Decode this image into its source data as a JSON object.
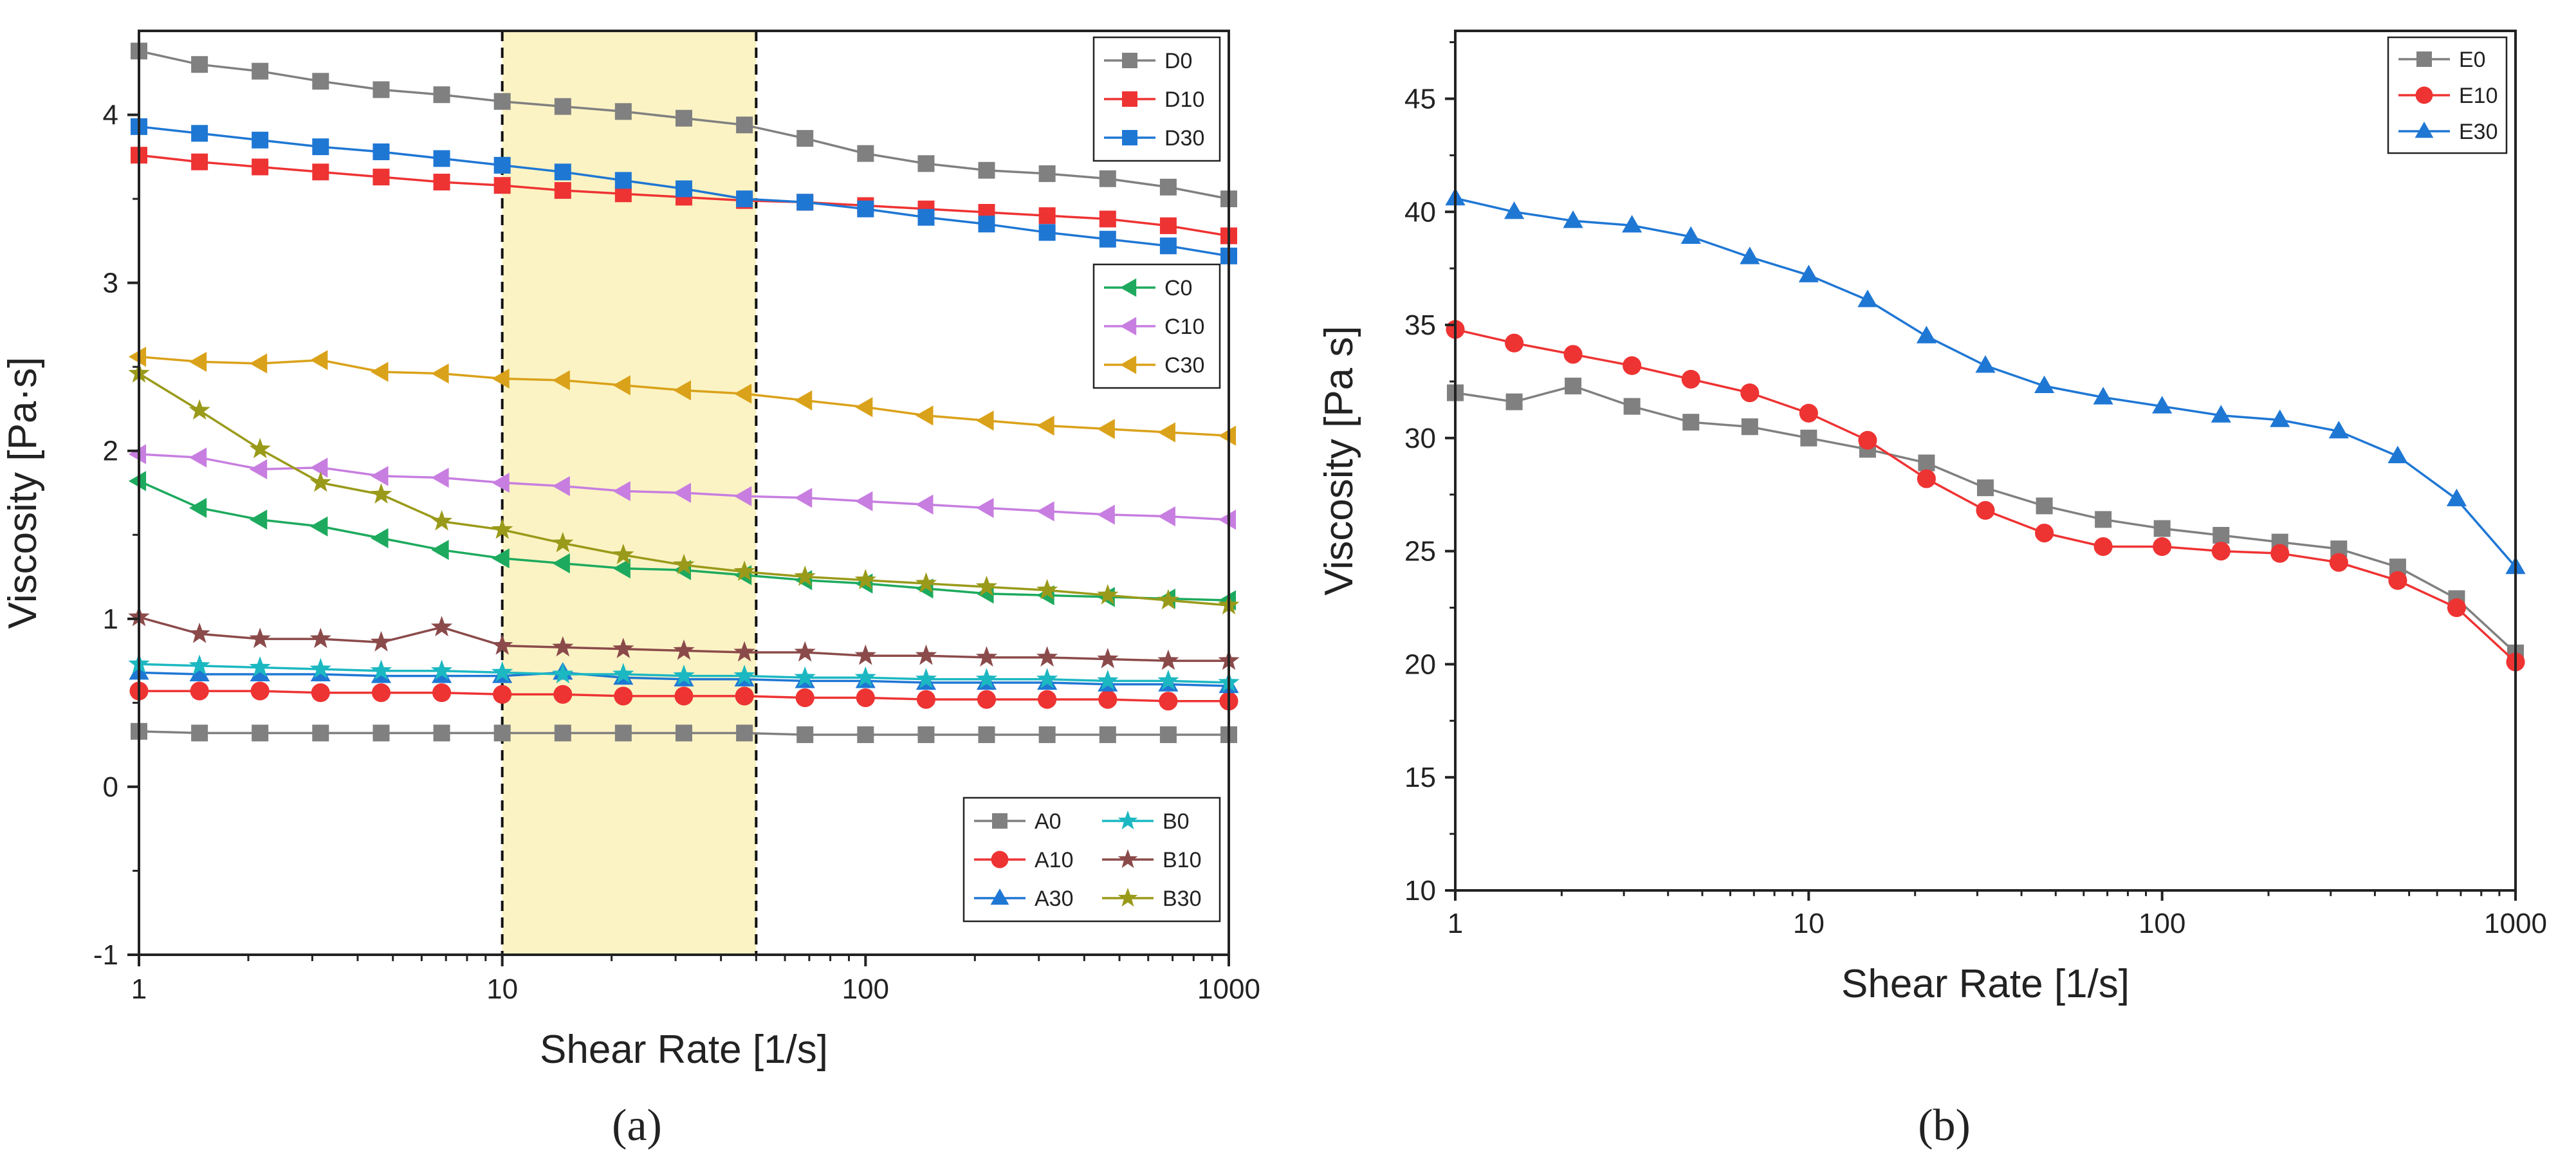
{
  "figure": {
    "panel_labels": [
      "(a)",
      "(b)"
    ]
  },
  "chart_data": [
    {
      "panel": "(a)",
      "type": "line",
      "title": "",
      "xlabel": "Shear Rate [1/s]",
      "ylabel": "Viscosity [Pa·s]",
      "xscale": "log",
      "xlim": [
        1,
        1000
      ],
      "ylim": [
        -1,
        4.5
      ],
      "xticks": [
        1,
        10,
        100,
        1000
      ],
      "xtick_labels": [
        "1",
        "10",
        "100",
        "1000"
      ],
      "yticks": [
        -1,
        0,
        1,
        2,
        3,
        4
      ],
      "ytick_labels": [
        "-1",
        "0",
        "1",
        "2",
        "3",
        "4"
      ],
      "grid": false,
      "highlight_band": {
        "x": [
          10,
          50
        ],
        "color": "#fbf3c4",
        "border": "dashed"
      },
      "x": [
        1,
        1.468,
        2.154,
        3.162,
        4.642,
        6.813,
        10,
        14.68,
        21.54,
        31.62,
        46.42,
        68.13,
        100,
        146.8,
        215.4,
        316.2,
        464.2,
        681.3,
        1000
      ],
      "legends": [
        {
          "position": "top-right",
          "series": [
            "D0",
            "D10",
            "D30"
          ]
        },
        {
          "position": "center-right",
          "series": [
            "C0",
            "C10",
            "C30"
          ]
        },
        {
          "position": "bottom-right",
          "columns": 2,
          "series": [
            "A0",
            "A10",
            "A30",
            "B0",
            "B10",
            "B30"
          ]
        }
      ],
      "series": [
        {
          "name": "D0",
          "color": "#808080",
          "marker": "square",
          "values": [
            4.38,
            4.3,
            4.26,
            4.2,
            4.15,
            4.12,
            4.08,
            4.05,
            4.02,
            3.98,
            3.94,
            3.86,
            3.77,
            3.71,
            3.67,
            3.65,
            3.62,
            3.57,
            3.5
          ]
        },
        {
          "name": "D10",
          "color": "#ee3333",
          "marker": "square",
          "values": [
            3.76,
            3.72,
            3.69,
            3.66,
            3.63,
            3.6,
            3.58,
            3.55,
            3.53,
            3.51,
            3.49,
            3.48,
            3.46,
            3.44,
            3.42,
            3.4,
            3.38,
            3.34,
            3.28
          ]
        },
        {
          "name": "D30",
          "color": "#1f77d4",
          "marker": "square",
          "values": [
            3.93,
            3.89,
            3.85,
            3.81,
            3.78,
            3.74,
            3.7,
            3.66,
            3.61,
            3.56,
            3.5,
            3.48,
            3.44,
            3.39,
            3.35,
            3.3,
            3.26,
            3.22,
            3.16
          ]
        },
        {
          "name": "C0",
          "color": "#1daa5e",
          "marker": "triangle-left",
          "values": [
            1.82,
            1.66,
            1.59,
            1.55,
            1.48,
            1.41,
            1.36,
            1.33,
            1.3,
            1.29,
            1.26,
            1.23,
            1.21,
            1.18,
            1.15,
            1.14,
            1.13,
            1.12,
            1.11
          ]
        },
        {
          "name": "C10",
          "color": "#c77ee0",
          "marker": "triangle-left",
          "values": [
            1.98,
            1.96,
            1.89,
            1.9,
            1.85,
            1.84,
            1.81,
            1.79,
            1.76,
            1.75,
            1.73,
            1.72,
            1.7,
            1.68,
            1.66,
            1.64,
            1.62,
            1.61,
            1.59
          ]
        },
        {
          "name": "C30",
          "color": "#daa21a",
          "marker": "triangle-left",
          "values": [
            2.56,
            2.53,
            2.52,
            2.54,
            2.47,
            2.46,
            2.43,
            2.42,
            2.39,
            2.36,
            2.34,
            2.3,
            2.26,
            2.21,
            2.18,
            2.15,
            2.13,
            2.11,
            2.09
          ]
        },
        {
          "name": "A0",
          "color": "#808080",
          "marker": "square",
          "values": [
            0.33,
            0.32,
            0.32,
            0.32,
            0.32,
            0.32,
            0.32,
            0.32,
            0.32,
            0.32,
            0.32,
            0.31,
            0.31,
            0.31,
            0.31,
            0.31,
            0.31,
            0.31,
            0.31
          ]
        },
        {
          "name": "A10",
          "color": "#ee3333",
          "marker": "circle",
          "values": [
            0.57,
            0.57,
            0.57,
            0.56,
            0.56,
            0.56,
            0.55,
            0.55,
            0.54,
            0.54,
            0.54,
            0.53,
            0.53,
            0.52,
            0.52,
            0.52,
            0.52,
            0.51,
            0.51
          ]
        },
        {
          "name": "A30",
          "color": "#1f77d4",
          "marker": "triangle-up",
          "values": [
            0.68,
            0.67,
            0.67,
            0.67,
            0.66,
            0.66,
            0.66,
            0.68,
            0.65,
            0.64,
            0.64,
            0.63,
            0.63,
            0.62,
            0.62,
            0.62,
            0.61,
            0.61,
            0.6
          ]
        },
        {
          "name": "B0",
          "color": "#1cb8c2",
          "marker": "star",
          "values": [
            0.73,
            0.72,
            0.71,
            0.7,
            0.69,
            0.69,
            0.68,
            0.67,
            0.67,
            0.66,
            0.66,
            0.65,
            0.65,
            0.64,
            0.64,
            0.64,
            0.63,
            0.63,
            0.62
          ]
        },
        {
          "name": "B10",
          "color": "#8b4a4a",
          "marker": "star",
          "values": [
            1.01,
            0.91,
            0.88,
            0.88,
            0.86,
            0.95,
            0.84,
            0.83,
            0.82,
            0.81,
            0.8,
            0.8,
            0.78,
            0.78,
            0.77,
            0.77,
            0.76,
            0.75,
            0.75
          ]
        },
        {
          "name": "B30",
          "color": "#9a9a1a",
          "marker": "star",
          "values": [
            2.46,
            2.24,
            2.01,
            1.81,
            1.74,
            1.58,
            1.53,
            1.45,
            1.38,
            1.32,
            1.28,
            1.25,
            1.23,
            1.21,
            1.19,
            1.17,
            1.14,
            1.11,
            1.08
          ]
        }
      ]
    },
    {
      "panel": "(b)",
      "type": "line",
      "title": "",
      "xlabel": "Shear Rate [1/s]",
      "ylabel": "Viscosity [Pa s]",
      "xscale": "log",
      "xlim": [
        1,
        1000
      ],
      "ylim": [
        10,
        48
      ],
      "xticks": [
        1,
        10,
        100,
        1000
      ],
      "xtick_labels": [
        "1",
        "10",
        "100",
        "1000"
      ],
      "yticks": [
        10,
        15,
        20,
        25,
        30,
        35,
        40,
        45
      ],
      "ytick_labels": [
        "10",
        "15",
        "20",
        "25",
        "30",
        "35",
        "40",
        "45"
      ],
      "grid": false,
      "x": [
        1,
        1.468,
        2.154,
        3.162,
        4.642,
        6.813,
        10,
        14.68,
        21.54,
        31.62,
        46.42,
        68.13,
        100,
        146.8,
        215.4,
        316.2,
        464.2,
        681.3,
        1000
      ],
      "legends": [
        {
          "position": "top-right",
          "series": [
            "E0",
            "E10",
            "E30"
          ]
        }
      ],
      "series": [
        {
          "name": "E0",
          "color": "#808080",
          "marker": "square",
          "values": [
            32.0,
            31.6,
            32.3,
            31.4,
            30.7,
            30.5,
            30.0,
            29.5,
            28.9,
            27.8,
            27.0,
            26.4,
            26.0,
            25.7,
            25.4,
            25.1,
            24.3,
            22.9,
            20.5
          ]
        },
        {
          "name": "E10",
          "color": "#ee3333",
          "marker": "circle",
          "values": [
            34.8,
            34.2,
            33.7,
            33.2,
            32.6,
            32.0,
            31.1,
            29.9,
            28.2,
            26.8,
            25.8,
            25.2,
            25.2,
            25.0,
            24.9,
            24.5,
            23.7,
            22.5,
            20.1
          ]
        },
        {
          "name": "E30",
          "color": "#1f77d4",
          "marker": "triangle-up",
          "values": [
            40.6,
            40.0,
            39.6,
            39.4,
            38.9,
            38.0,
            37.2,
            36.1,
            34.5,
            33.2,
            32.3,
            31.8,
            31.4,
            31.0,
            30.8,
            30.3,
            29.2,
            27.3,
            24.3
          ]
        }
      ]
    }
  ]
}
